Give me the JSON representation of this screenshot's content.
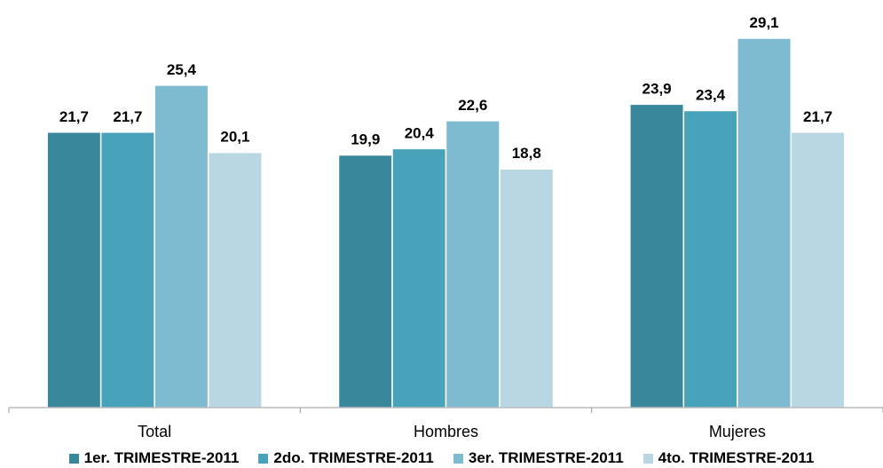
{
  "chart_data": {
    "type": "bar",
    "categories": [
      "Total",
      "Hombres",
      "Mujeres"
    ],
    "series": [
      {
        "name": "1er. TRIMESTRE-2011",
        "color": "#39879A",
        "values": [
          21.7,
          19.9,
          23.9
        ],
        "labels": [
          "21,7",
          "19,9",
          "23,9"
        ]
      },
      {
        "name": "2do. TRIMESTRE-2011",
        "color": "#47A2BA",
        "values": [
          21.7,
          20.4,
          23.4
        ],
        "labels": [
          "21,7",
          "20,4",
          "23,4"
        ]
      },
      {
        "name": "3er. TRIMESTRE-2011",
        "color": "#7EBBD0",
        "values": [
          25.4,
          22.6,
          29.1
        ],
        "labels": [
          "25,4",
          "22,6",
          "29,1"
        ]
      },
      {
        "name": "4to. TRIMESTRE-2011",
        "color": "#B8D7E2",
        "values": [
          20.1,
          18.8,
          21.7
        ],
        "labels": [
          "20,1",
          "18,8",
          "21,7"
        ]
      }
    ],
    "ylim": [
      0,
      29.1
    ],
    "grid": false,
    "legend_position": "bottom"
  }
}
